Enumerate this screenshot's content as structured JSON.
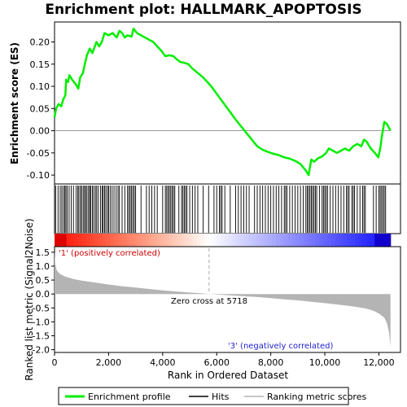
{
  "chart_data": {
    "type": "line",
    "title": "Enrichment plot: HALLMARK_APOPTOSIS",
    "xlabel": "Rank in Ordered Dataset",
    "xlim": [
      0,
      12800
    ],
    "x_ticks": [
      0,
      2000,
      4000,
      6000,
      8000,
      10000,
      12000
    ],
    "x_tick_labels": [
      "0",
      "2,000",
      "4,000",
      "6,000",
      "8,000",
      "10,000",
      "12,000"
    ],
    "panels": {
      "es": {
        "ylabel": "Enrichment score (ES)",
        "ylim": [
          -0.12,
          0.245
        ],
        "y_ticks": [
          -0.1,
          -0.05,
          0.0,
          0.05,
          0.1,
          0.15,
          0.2
        ],
        "y_tick_labels": [
          "-0.10",
          "-0.05",
          "0.00",
          "0.05",
          "0.10",
          "0.15",
          "0.20"
        ],
        "color": "#00ee00"
      },
      "metric": {
        "ylabel": "Ranked list metric (Signal2Noise)",
        "ylim": [
          -2.1,
          1.7
        ],
        "y_ticks": [
          -2.0,
          -1.5,
          -1.0,
          -0.5,
          0.0,
          0.5,
          1.0,
          1.5
        ],
        "y_tick_labels": [
          "-2.0",
          "-1.5",
          "-1.0",
          "-0.5",
          "0.0",
          "0.5",
          "1.0",
          "1.5"
        ],
        "color": "#b4b4b4"
      }
    },
    "series": [
      {
        "name": "Enrichment profile",
        "points": [
          [
            0,
            0.03
          ],
          [
            60,
            0.05
          ],
          [
            150,
            0.06
          ],
          [
            250,
            0.055
          ],
          [
            320,
            0.07
          ],
          [
            400,
            0.08
          ],
          [
            430,
            0.115
          ],
          [
            500,
            0.11
          ],
          [
            550,
            0.125
          ],
          [
            650,
            0.115
          ],
          [
            780,
            0.105
          ],
          [
            880,
            0.095
          ],
          [
            950,
            0.12
          ],
          [
            1050,
            0.13
          ],
          [
            1120,
            0.15
          ],
          [
            1200,
            0.17
          ],
          [
            1300,
            0.185
          ],
          [
            1400,
            0.175
          ],
          [
            1550,
            0.2
          ],
          [
            1650,
            0.19
          ],
          [
            1750,
            0.2
          ],
          [
            1850,
            0.22
          ],
          [
            2000,
            0.215
          ],
          [
            2150,
            0.22
          ],
          [
            2300,
            0.21
          ],
          [
            2400,
            0.225
          ],
          [
            2500,
            0.22
          ],
          [
            2600,
            0.21
          ],
          [
            2700,
            0.215
          ],
          [
            2850,
            0.212
          ],
          [
            2920,
            0.23
          ],
          [
            3050,
            0.22
          ],
          [
            3200,
            0.215
          ],
          [
            3350,
            0.21
          ],
          [
            3500,
            0.205
          ],
          [
            3650,
            0.2
          ],
          [
            3800,
            0.19
          ],
          [
            3950,
            0.18
          ],
          [
            4100,
            0.168
          ],
          [
            4250,
            0.17
          ],
          [
            4400,
            0.168
          ],
          [
            4500,
            0.162
          ],
          [
            4650,
            0.155
          ],
          [
            4800,
            0.153
          ],
          [
            4950,
            0.15
          ],
          [
            5100,
            0.14
          ],
          [
            5300,
            0.13
          ],
          [
            5500,
            0.12
          ],
          [
            5800,
            0.1
          ],
          [
            6100,
            0.075
          ],
          [
            6400,
            0.05
          ],
          [
            6700,
            0.025
          ],
          [
            6900,
            0.01
          ],
          [
            7100,
            -0.005
          ],
          [
            7300,
            -0.02
          ],
          [
            7500,
            -0.035
          ],
          [
            7700,
            -0.043
          ],
          [
            7900,
            -0.048
          ],
          [
            8100,
            -0.052
          ],
          [
            8300,
            -0.055
          ],
          [
            8500,
            -0.06
          ],
          [
            8700,
            -0.063
          ],
          [
            8900,
            -0.068
          ],
          [
            9100,
            -0.075
          ],
          [
            9300,
            -0.09
          ],
          [
            9400,
            -0.1
          ],
          [
            9500,
            -0.065
          ],
          [
            9600,
            -0.07
          ],
          [
            9750,
            -0.062
          ],
          [
            9900,
            -0.058
          ],
          [
            10050,
            -0.05
          ],
          [
            10150,
            -0.04
          ],
          [
            10300,
            -0.045
          ],
          [
            10450,
            -0.05
          ],
          [
            10600,
            -0.045
          ],
          [
            10750,
            -0.04
          ],
          [
            10900,
            -0.045
          ],
          [
            11050,
            -0.035
          ],
          [
            11200,
            -0.03
          ],
          [
            11350,
            -0.035
          ],
          [
            11450,
            -0.02
          ],
          [
            11550,
            -0.025
          ],
          [
            11700,
            -0.04
          ],
          [
            11850,
            -0.05
          ],
          [
            11980,
            -0.06
          ],
          [
            12050,
            -0.04
          ],
          [
            12120,
            -0.01
          ],
          [
            12200,
            0.02
          ],
          [
            12300,
            0.015
          ],
          [
            12430,
            0.0
          ]
        ]
      },
      {
        "name": "Ranking metric scores",
        "points": [
          [
            0,
            1.55
          ],
          [
            20,
            1.1
          ],
          [
            80,
            0.85
          ],
          [
            200,
            0.72
          ],
          [
            400,
            0.62
          ],
          [
            700,
            0.54
          ],
          [
            1000,
            0.48
          ],
          [
            1500,
            0.41
          ],
          [
            2000,
            0.34
          ],
          [
            2500,
            0.28
          ],
          [
            3000,
            0.23
          ],
          [
            3500,
            0.18
          ],
          [
            4000,
            0.13
          ],
          [
            4500,
            0.09
          ],
          [
            5000,
            0.05
          ],
          [
            5500,
            0.02
          ],
          [
            5718,
            0.0
          ],
          [
            6000,
            -0.02
          ],
          [
            6500,
            -0.05
          ],
          [
            7000,
            -0.08
          ],
          [
            7500,
            -0.11
          ],
          [
            8000,
            -0.15
          ],
          [
            8500,
            -0.19
          ],
          [
            9000,
            -0.23
          ],
          [
            9500,
            -0.28
          ],
          [
            10000,
            -0.33
          ],
          [
            10500,
            -0.38
          ],
          [
            11000,
            -0.44
          ],
          [
            11500,
            -0.52
          ],
          [
            11800,
            -0.6
          ],
          [
            12000,
            -0.7
          ],
          [
            12200,
            -0.85
          ],
          [
            12300,
            -1.05
          ],
          [
            12380,
            -1.4
          ],
          [
            12430,
            -1.9
          ]
        ]
      }
    ],
    "hits": [
      40,
      130,
      210,
      270,
      330,
      380,
      420,
      470,
      540,
      620,
      700,
      800,
      860,
      900,
      960,
      1000,
      1060,
      1110,
      1150,
      1200,
      1260,
      1300,
      1340,
      1400,
      1450,
      1510,
      1560,
      1620,
      1700,
      1760,
      1800,
      1850,
      1900,
      1960,
      2000,
      2060,
      2130,
      2200,
      2280,
      2350,
      2400,
      2500,
      2600,
      2700,
      2750,
      2800,
      2850,
      2900,
      2950,
      3000,
      3200,
      3400,
      3500,
      3600,
      3700,
      3800,
      4000,
      4100,
      4150,
      4200,
      4250,
      4300,
      4350,
      4400,
      4450,
      4600,
      4700,
      4750,
      4800,
      4850,
      4900,
      5000,
      5100,
      5200,
      5300,
      5500,
      5700,
      5900,
      6000,
      6100,
      6150,
      6200,
      6300,
      6500,
      6700,
      6800,
      6900,
      7000,
      7100,
      7200,
      7400,
      7500,
      7600,
      7700,
      7800,
      7900,
      8000,
      8100,
      8200,
      8300,
      8400,
      8500,
      8550,
      8600,
      8700,
      8800,
      8900,
      9000,
      9100,
      9200,
      9300,
      9350,
      9400,
      9450,
      9500,
      9550,
      9600,
      9650,
      9700,
      9800,
      9900,
      9950,
      10000,
      10050,
      10100,
      10200,
      10300,
      10400,
      10500,
      10600,
      10700,
      10800,
      10850,
      10900,
      11000,
      11050,
      11100,
      11200,
      11300,
      11400,
      11450,
      11500,
      11800,
      11900,
      12000,
      12050,
      12100,
      12150,
      12200,
      12250
    ],
    "annotations": {
      "positive_label": "'1' (positively correlated)",
      "negative_label": "'3' (negatively correlated)",
      "zero_cross_label": "Zero cross at 5718",
      "zero_cross_rank": 5718
    },
    "legend": {
      "placement": "bottom",
      "entries": [
        {
          "label": "Enrichment profile",
          "color": "#00ee00"
        },
        {
          "label": "Hits",
          "color": "#000000"
        },
        {
          "label": "Ranking metric scores",
          "color": "#b4b4b4"
        }
      ]
    },
    "grid": false
  }
}
